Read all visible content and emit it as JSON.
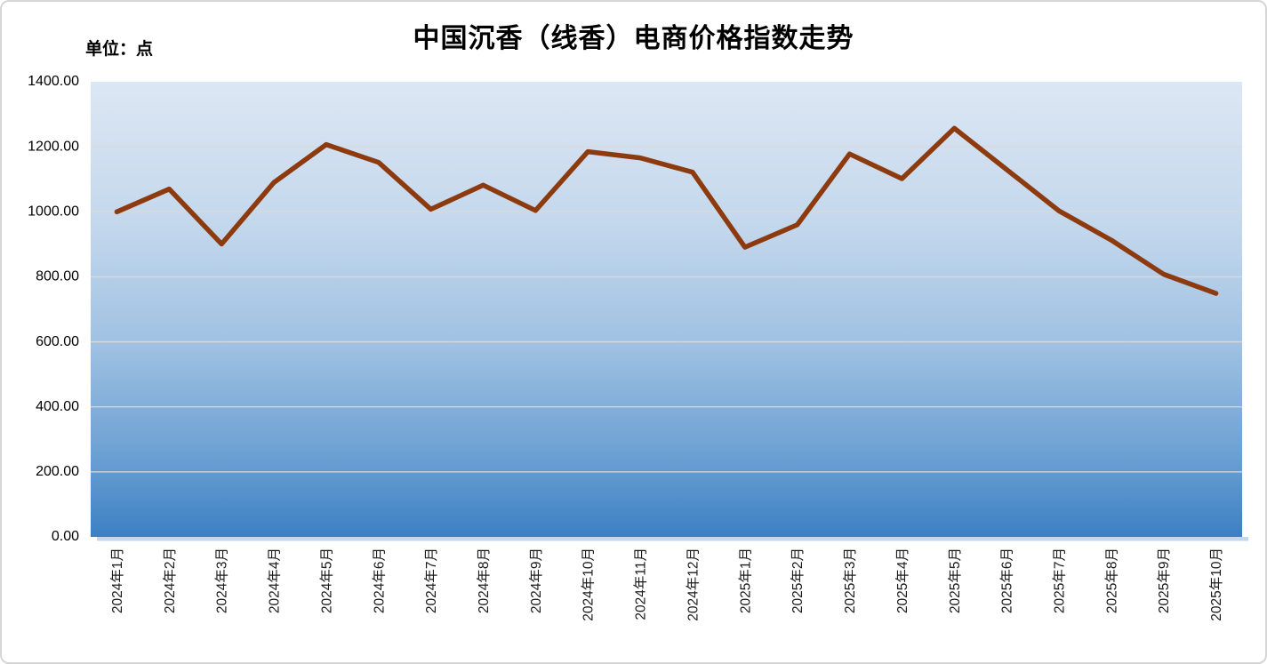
{
  "chart_data": {
    "type": "line",
    "title": "中国沉香（线香）电商价格指数走势",
    "unit_label": "单位：点",
    "categories": [
      "2024年1月",
      "2024年2月",
      "2024年3月",
      "2024年4月",
      "2024年5月",
      "2024年6月",
      "2024年7月",
      "2024年8月",
      "2024年9月",
      "2024年10月",
      "2024年11月",
      "2024年12月",
      "2025年1月",
      "2025年2月",
      "2025年3月",
      "2025年4月",
      "2025年5月",
      "2025年6月",
      "2025年7月",
      "2025年8月",
      "2025年9月",
      "2025年10月"
    ],
    "series": [
      {
        "name": "中国沉香（线香）电商价格指数",
        "values": [
          1000,
          1070,
          901,
          1090,
          1207,
          1152,
          1008,
          1082,
          1004,
          1185,
          1166,
          1122,
          891,
          960,
          1178,
          1102,
          1257,
          1130,
          1003,
          913,
          808,
          749
        ]
      }
    ],
    "xlabel": "",
    "ylabel": "",
    "ylim": [
      0,
      1400
    ],
    "ytick_step": 200,
    "ytick_decimals": 2,
    "grid": true,
    "legend_position": "none",
    "colors": {
      "line": "#8c3a0e",
      "gridline": "#d9d9d9",
      "axis_text": "#000000",
      "plot_gradient_top_to_bottom": [
        "#dce7f4",
        "#c3d7ec",
        "#9fc1e2",
        "#6ca0d3",
        "#3c80c3"
      ],
      "plot_shadow": "#c3d7ee"
    }
  }
}
